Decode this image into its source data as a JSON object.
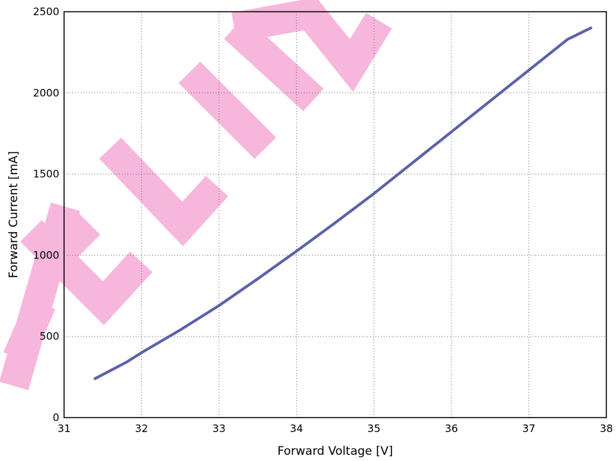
{
  "chart_data": {
    "type": "line",
    "xlabel": "Forward Voltage [V]",
    "ylabel": "Forward Current [mA]",
    "xlim": [
      31,
      38
    ],
    "ylim": [
      0,
      2500
    ],
    "x_ticks": [
      31,
      32,
      33,
      34,
      35,
      36,
      37,
      38
    ],
    "y_ticks": [
      0,
      500,
      1000,
      1500,
      2000,
      2500
    ],
    "x_tick_labels": [
      "31",
      "32",
      "33",
      "34",
      "35",
      "36",
      "37",
      "38"
    ],
    "y_tick_labels": [
      "0",
      "500",
      "1000",
      "1500",
      "2000",
      "2500"
    ],
    "grid": true,
    "series": [
      {
        "color": "#5b62a8",
        "x": [
          31.4,
          31.8,
          32.0,
          32.5,
          33.0,
          33.5,
          34.0,
          34.5,
          35.0,
          35.5,
          36.0,
          36.5,
          37.0,
          37.5,
          37.8
        ],
        "y": [
          240,
          340,
          400,
          540,
          690,
          855,
          1025,
          1200,
          1380,
          1570,
          1760,
          1950,
          2140,
          2330,
          2400
        ]
      }
    ]
  },
  "watermark": {
    "text": "PRELIMINARY",
    "color": "#f7b6dc"
  }
}
